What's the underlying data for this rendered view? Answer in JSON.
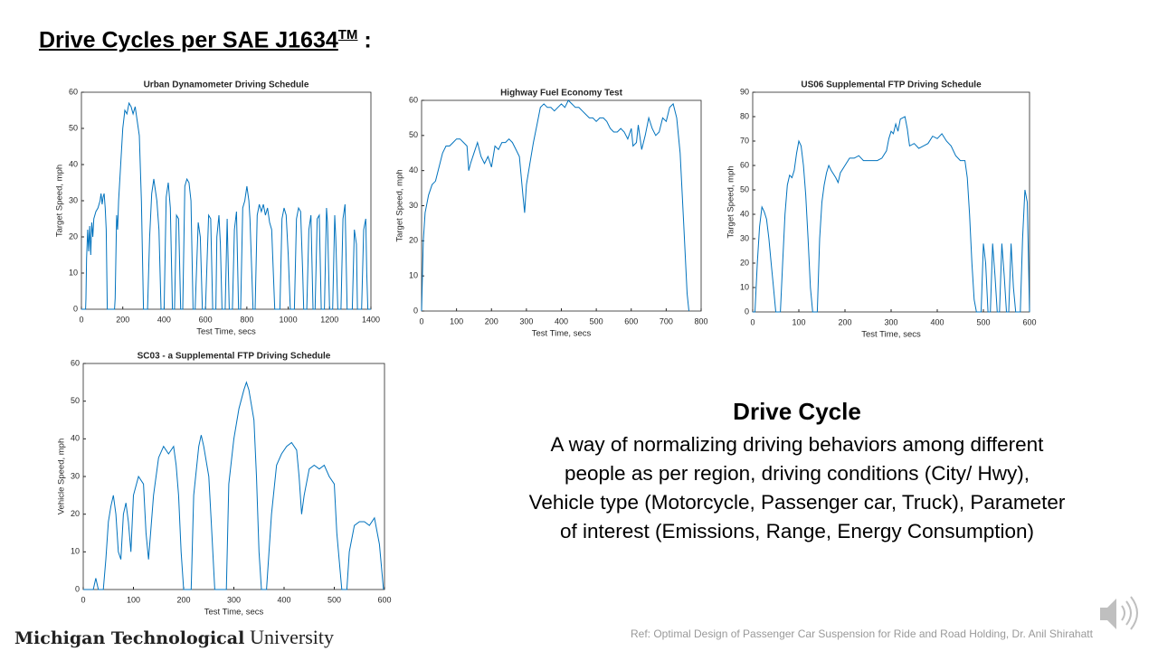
{
  "slide": {
    "title": "Drive Cycles per SAE J1634",
    "title_superscript": "TM",
    "title_suffix": " :",
    "heading": "Drive Cycle",
    "definition_lines": [
      "A way of normalizing driving behaviors among different",
      "people as per region, driving conditions (City/ Hwy),",
      "Vehicle type (Motorcycle, Passenger car, Truck), Parameter",
      "of interest (Emissions, Range, Energy Consumption)"
    ],
    "logo_bold": "Michigan Technological",
    "logo_regular": "University",
    "reference": "Ref: Optimal Design of Passenger Car Suspension  for Ride and Road Holding, Dr. Anil Shirahatt"
  },
  "chart_data": [
    {
      "type": "line",
      "title": "Urban Dynamometer Driving Schedule",
      "x_label": "Test Time, secs",
      "y_label": "Target Speed, mph",
      "color": "#0072bd",
      "xlim": [
        0,
        1400
      ],
      "ylim": [
        0,
        60
      ],
      "xticks": [
        0,
        200,
        400,
        600,
        800,
        1000,
        1200,
        1400
      ],
      "yticks": [
        0,
        10,
        20,
        30,
        40,
        50,
        60
      ],
      "x": [
        0,
        20,
        22,
        25,
        30,
        35,
        40,
        45,
        50,
        55,
        60,
        70,
        80,
        90,
        95,
        100,
        105,
        110,
        115,
        120,
        125,
        160,
        163,
        170,
        175,
        180,
        190,
        200,
        210,
        220,
        230,
        240,
        250,
        260,
        270,
        280,
        290,
        300,
        320,
        330,
        340,
        350,
        355,
        365,
        375,
        385,
        400,
        410,
        420,
        430,
        440,
        450,
        460,
        470,
        480,
        490,
        500,
        510,
        520,
        530,
        540,
        550,
        565,
        575,
        585,
        600,
        615,
        625,
        635,
        650,
        655,
        665,
        672,
        680,
        695,
        705,
        715,
        730,
        740,
        750,
        760,
        770,
        780,
        790,
        800,
        810,
        815,
        830,
        840,
        850,
        860,
        870,
        880,
        890,
        900,
        910,
        920,
        935,
        960,
        970,
        980,
        990,
        1000,
        1010,
        1030,
        1040,
        1050,
        1060,
        1070,
        1075,
        1090,
        1100,
        1110,
        1120,
        1130,
        1140,
        1150,
        1160,
        1175,
        1185,
        1190,
        1200,
        1215,
        1225,
        1230,
        1240,
        1255,
        1265,
        1275,
        1285,
        1310,
        1320,
        1330,
        1335,
        1355,
        1365,
        1375,
        1380,
        1385,
        1400
      ],
      "values": [
        0,
        0,
        3,
        14,
        22,
        16,
        23,
        15,
        24,
        20,
        25,
        27,
        28,
        30,
        32,
        29,
        31,
        32,
        28,
        22,
        0,
        0,
        3,
        26,
        22,
        30,
        40,
        50,
        55,
        54,
        57,
        56,
        54,
        56,
        52,
        48,
        30,
        0,
        0,
        20,
        32,
        36,
        34,
        30,
        22,
        0,
        0,
        31,
        35,
        28,
        0,
        0,
        26,
        25,
        0,
        0,
        34,
        36,
        35,
        30,
        0,
        0,
        24,
        20,
        0,
        0,
        26,
        25,
        0,
        0,
        20,
        26,
        18,
        0,
        0,
        25,
        0,
        0,
        22,
        27,
        0,
        0,
        28,
        30,
        34,
        30,
        25,
        0,
        0,
        26,
        29,
        27,
        29,
        26,
        28,
        24,
        22,
        0,
        0,
        25,
        28,
        26,
        15,
        0,
        0,
        25,
        28,
        27,
        10,
        0,
        0,
        22,
        26,
        0,
        0,
        25,
        26,
        0,
        0,
        28,
        24,
        0,
        0,
        26,
        20,
        0,
        0,
        25,
        29,
        0,
        0,
        22,
        18,
        0,
        0,
        22,
        25,
        10,
        0,
        0
      ]
    },
    {
      "type": "line",
      "title": "Highway Fuel Economy Test",
      "x_label": "Test Time, secs",
      "y_label": "Target Speed, mph",
      "color": "#0072bd",
      "xlim": [
        0,
        800
      ],
      "ylim": [
        0,
        60
      ],
      "xticks": [
        0,
        100,
        200,
        300,
        400,
        500,
        600,
        700,
        800
      ],
      "yticks": [
        0,
        10,
        20,
        30,
        40,
        50,
        60
      ],
      "x": [
        0,
        5,
        10,
        20,
        30,
        40,
        50,
        60,
        70,
        80,
        90,
        100,
        110,
        120,
        130,
        135,
        140,
        150,
        160,
        170,
        180,
        190,
        200,
        205,
        210,
        220,
        230,
        240,
        250,
        260,
        270,
        280,
        290,
        295,
        300,
        310,
        320,
        330,
        340,
        350,
        360,
        370,
        380,
        390,
        400,
        410,
        420,
        430,
        440,
        450,
        460,
        470,
        480,
        490,
        500,
        510,
        520,
        530,
        540,
        550,
        560,
        570,
        580,
        590,
        600,
        605,
        615,
        620,
        630,
        640,
        650,
        660,
        670,
        680,
        690,
        700,
        710,
        720,
        730,
        740,
        750,
        760,
        765
      ],
      "values": [
        0,
        20,
        28,
        33,
        36,
        37,
        41,
        45,
        47,
        47,
        48,
        49,
        49,
        48,
        47,
        40,
        42,
        45,
        48,
        44,
        42,
        44,
        41,
        44,
        47,
        46,
        48,
        48,
        49,
        48,
        46,
        44,
        33,
        28,
        36,
        42,
        48,
        53,
        58,
        59,
        58,
        58,
        57,
        58,
        59,
        58,
        60,
        59,
        58,
        58,
        57,
        56,
        55,
        55,
        54,
        55,
        55,
        54,
        52,
        51,
        51,
        52,
        51,
        49,
        52,
        47,
        48,
        53,
        46,
        50,
        55,
        52,
        50,
        51,
        55,
        54,
        58,
        59,
        55,
        45,
        25,
        5,
        0
      ]
    },
    {
      "type": "line",
      "title": "US06 Supplemental FTP Driving Schedule",
      "x_label": "Test Time, secs",
      "y_label": "Target Speed, mph",
      "color": "#0072bd",
      "xlim": [
        0,
        600
      ],
      "ylim": [
        0,
        90
      ],
      "xticks": [
        0,
        100,
        200,
        300,
        400,
        500,
        600
      ],
      "yticks": [
        0,
        10,
        20,
        30,
        40,
        50,
        60,
        70,
        80,
        90
      ],
      "x": [
        0,
        5,
        10,
        15,
        20,
        25,
        30,
        35,
        40,
        45,
        50,
        60,
        65,
        70,
        75,
        80,
        85,
        90,
        95,
        100,
        105,
        110,
        115,
        120,
        125,
        130,
        140,
        145,
        150,
        155,
        160,
        165,
        170,
        180,
        185,
        190,
        200,
        210,
        220,
        230,
        240,
        250,
        260,
        270,
        280,
        290,
        295,
        300,
        305,
        310,
        315,
        320,
        330,
        335,
        340,
        350,
        360,
        370,
        380,
        390,
        400,
        410,
        420,
        430,
        440,
        450,
        460,
        465,
        470,
        475,
        480,
        485,
        495,
        500,
        505,
        510,
        515,
        520,
        525,
        530,
        535,
        540,
        545,
        550,
        555,
        560,
        565,
        570,
        580,
        585,
        590,
        595,
        600
      ],
      "values": [
        0,
        0,
        20,
        35,
        43,
        41,
        38,
        30,
        20,
        10,
        0,
        0,
        20,
        40,
        52,
        56,
        55,
        58,
        65,
        70,
        68,
        60,
        48,
        30,
        10,
        0,
        0,
        30,
        45,
        52,
        57,
        60,
        58,
        55,
        53,
        57,
        60,
        63,
        63,
        64,
        62,
        62,
        62,
        62,
        63,
        66,
        71,
        74,
        73,
        77,
        74,
        79,
        80,
        75,
        68,
        69,
        67,
        68,
        69,
        72,
        71,
        73,
        70,
        68,
        64,
        62,
        62,
        55,
        40,
        20,
        5,
        0,
        0,
        28,
        20,
        0,
        0,
        28,
        15,
        0,
        0,
        28,
        15,
        0,
        0,
        28,
        10,
        0,
        0,
        30,
        50,
        45,
        0
      ]
    },
    {
      "type": "line",
      "title": "SC03 - a Supplemental FTP Driving Schedule",
      "x_label": "Test Time, secs",
      "y_label": "Vehicle Speed, mph",
      "color": "#0072bd",
      "xlim": [
        0,
        600
      ],
      "ylim": [
        0,
        60
      ],
      "xticks": [
        0,
        100,
        200,
        300,
        400,
        500,
        600
      ],
      "yticks": [
        0,
        10,
        20,
        30,
        40,
        50,
        60
      ],
      "x": [
        0,
        20,
        25,
        30,
        40,
        45,
        50,
        55,
        60,
        65,
        70,
        75,
        80,
        85,
        90,
        95,
        100,
        110,
        120,
        125,
        130,
        140,
        150,
        160,
        170,
        180,
        185,
        190,
        195,
        200,
        215,
        220,
        230,
        235,
        240,
        250,
        255,
        262,
        285,
        290,
        300,
        310,
        320,
        325,
        330,
        340,
        345,
        350,
        355,
        365,
        375,
        385,
        395,
        405,
        415,
        425,
        430,
        435,
        440,
        450,
        460,
        470,
        480,
        490,
        500,
        505,
        515,
        525,
        530,
        540,
        550,
        560,
        570,
        580,
        590,
        598
      ],
      "values": [
        0,
        0,
        3,
        0,
        0,
        8,
        18,
        22,
        25,
        20,
        10,
        8,
        20,
        23,
        18,
        10,
        25,
        30,
        28,
        15,
        8,
        25,
        35,
        38,
        36,
        38,
        33,
        25,
        10,
        0,
        0,
        25,
        38,
        41,
        38,
        30,
        18,
        0,
        0,
        28,
        40,
        48,
        53,
        55,
        53,
        45,
        30,
        10,
        0,
        0,
        20,
        33,
        36,
        38,
        39,
        37,
        30,
        20,
        25,
        32,
        33,
        32,
        33,
        30,
        28,
        15,
        0,
        0,
        10,
        17,
        18,
        18,
        17,
        19,
        12,
        0
      ]
    }
  ]
}
